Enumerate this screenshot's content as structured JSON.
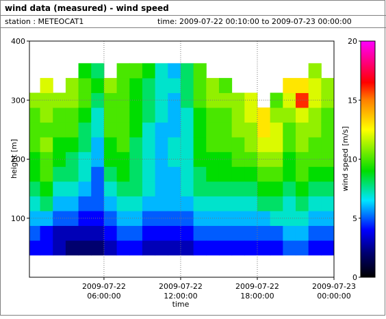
{
  "chart_data": {
    "type": "heatmap",
    "title": "wind data (measured) - wind speed",
    "station_label": "station : METEOCAT1",
    "time_label": "time: 2009-07-22 00:10:00 to 2009-07-23 00:00:00",
    "x_label": "time",
    "y_label": "height [m]",
    "colorbar_label": "wind speed [m/s]",
    "x": [
      "2009-07-22 00:30:00",
      "2009-07-22 01:30:00",
      "2009-07-22 02:30:00",
      "2009-07-22 03:30:00",
      "2009-07-22 04:30:00",
      "2009-07-22 05:30:00",
      "2009-07-22 06:30:00",
      "2009-07-22 07:30:00",
      "2009-07-22 08:30:00",
      "2009-07-22 09:30:00",
      "2009-07-22 10:30:00",
      "2009-07-22 11:30:00",
      "2009-07-22 12:30:00",
      "2009-07-22 13:30:00",
      "2009-07-22 14:30:00",
      "2009-07-22 15:30:00",
      "2009-07-22 16:30:00",
      "2009-07-22 17:30:00",
      "2009-07-22 18:30:00",
      "2009-07-22 19:30:00",
      "2009-07-22 20:30:00",
      "2009-07-22 21:30:00",
      "2009-07-22 22:30:00",
      "2009-07-22 23:30:00"
    ],
    "y": [
      50,
      75,
      100,
      125,
      150,
      175,
      200,
      225,
      250,
      275,
      300,
      325,
      350
    ],
    "z": [
      [
        4,
        5,
        6,
        7,
        8,
        9,
        9,
        10,
        10,
        10,
        11,
        null,
        null
      ],
      [
        4,
        4,
        6,
        8,
        9,
        10,
        10,
        11,
        10,
        11,
        11,
        12,
        null
      ],
      [
        3,
        3,
        5,
        6,
        7,
        8,
        9,
        9,
        10,
        10,
        11,
        null,
        null
      ],
      [
        2,
        3,
        5,
        6,
        7,
        8,
        8,
        9,
        10,
        10,
        11,
        11,
        null
      ],
      [
        2,
        3,
        4,
        5,
        6,
        7,
        7,
        8,
        8,
        9,
        10,
        10,
        9
      ],
      [
        2,
        3,
        4,
        5,
        5,
        5,
        6,
        6,
        7,
        7,
        8,
        9,
        8
      ],
      [
        3,
        4,
        5,
        6,
        7,
        8,
        9,
        9,
        10,
        10,
        10,
        11,
        null
      ],
      [
        4,
        5,
        6,
        7,
        8,
        9,
        9,
        10,
        10,
        10,
        10,
        10,
        10
      ],
      [
        4,
        5,
        6,
        7,
        8,
        8,
        8,
        8,
        9,
        9,
        9,
        9,
        10
      ],
      [
        3,
        4,
        5,
        6,
        7,
        7,
        7,
        7,
        7,
        8,
        8,
        8,
        9
      ],
      [
        3,
        4,
        5,
        6,
        6,
        6,
        6,
        6,
        6,
        7,
        7,
        7,
        7
      ],
      [
        3,
        4,
        5,
        6,
        6,
        6,
        7,
        7,
        6,
        6,
        6,
        7,
        6
      ],
      [
        3,
        4,
        5,
        6,
        7,
        7,
        7,
        7,
        7,
        7,
        8,
        8,
        8
      ],
      [
        4,
        5,
        6,
        7,
        8,
        8,
        9,
        9,
        9,
        9,
        10,
        10,
        10
      ],
      [
        4,
        5,
        6,
        7,
        8,
        9,
        9,
        10,
        10,
        10,
        11,
        11,
        null
      ],
      [
        4,
        5,
        6,
        7,
        8,
        9,
        9,
        10,
        10,
        10,
        11,
        10,
        null
      ],
      [
        4,
        5,
        6,
        7,
        8,
        9,
        10,
        10,
        11,
        11,
        11,
        null,
        null
      ],
      [
        4,
        5,
        6,
        7,
        8,
        9,
        10,
        11,
        11,
        12,
        12,
        null,
        null
      ],
      [
        4,
        5,
        6,
        8,
        9,
        10,
        11,
        12,
        13,
        13,
        null,
        null,
        null
      ],
      [
        4,
        5,
        7,
        8,
        9,
        10,
        11,
        12,
        12,
        11,
        10,
        null,
        null
      ],
      [
        5,
        6,
        7,
        7,
        8,
        9,
        9,
        10,
        10,
        11,
        12,
        13,
        null
      ],
      [
        5,
        6,
        7,
        8,
        9,
        10,
        10,
        11,
        11,
        12,
        16,
        13,
        null
      ],
      [
        4,
        5,
        6,
        7,
        8,
        9,
        10,
        10,
        11,
        11,
        12,
        12,
        11
      ],
      [
        4,
        5,
        6,
        7,
        8,
        9,
        10,
        10,
        10,
        10,
        11,
        11,
        null
      ]
    ],
    "xlim": [
      "2009-07-22 00:10:00",
      "2009-07-23 00:00:00"
    ],
    "xticks": [
      "2009-07-22 06:00:00",
      "2009-07-22 12:00:00",
      "2009-07-22 18:00:00",
      "2009-07-23 00:00:00"
    ],
    "ylim": [
      0,
      400
    ],
    "yticks": [
      100,
      200,
      300,
      400
    ],
    "clim": [
      0,
      20
    ],
    "cticks": [
      0,
      5,
      10,
      15,
      20
    ],
    "colorscale": [
      [
        0,
        "#000000"
      ],
      [
        2,
        "#00006e"
      ],
      [
        4,
        "#0000ff"
      ],
      [
        6.5,
        "#00e5ff"
      ],
      [
        9,
        "#00dd00"
      ],
      [
        12.5,
        "#ffff00"
      ],
      [
        15,
        "#ff8000"
      ],
      [
        16.5,
        "#ff0000"
      ],
      [
        20,
        "#ff00ff"
      ]
    ],
    "grid": true
  }
}
